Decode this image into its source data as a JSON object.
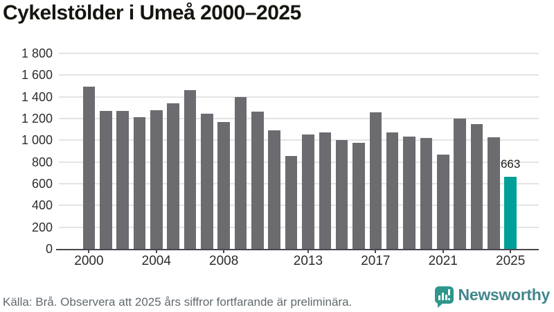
{
  "title": "Cykelstölder i Umeå 2000–2025",
  "chart_data": {
    "type": "bar",
    "categories": [
      2000,
      2001,
      2002,
      2003,
      2004,
      2005,
      2006,
      2007,
      2008,
      2009,
      2010,
      2011,
      2012,
      2013,
      2014,
      2015,
      2016,
      2017,
      2018,
      2019,
      2020,
      2021,
      2022,
      2023,
      2024,
      2025
    ],
    "values": [
      1495,
      1270,
      1270,
      1210,
      1275,
      1340,
      1465,
      1245,
      1170,
      1400,
      1265,
      1090,
      855,
      1055,
      1070,
      1005,
      975,
      1255,
      1070,
      1035,
      1020,
      870,
      1200,
      1150,
      1030,
      663
    ],
    "title": "Cykelstölder i Umeå 2000–2025",
    "xlabel": "",
    "ylabel": "",
    "ylim": [
      0,
      1800
    ],
    "grid": true,
    "legend": "none",
    "y_tick_labels": [
      "0",
      "200",
      "400",
      "600",
      "800",
      "1 000",
      "1 200",
      "1 400",
      "1 600",
      "1 800"
    ],
    "x_tick_years": [
      2000,
      2004,
      2008,
      2013,
      2017,
      2021,
      2025
    ],
    "highlight_year": 2025,
    "annotation": {
      "year": 2025,
      "label": "663"
    },
    "colors": {
      "bar": "#6b6b70",
      "highlight": "#00a099",
      "grid": "#e4e4e4",
      "axis": "#47474d"
    }
  },
  "footer": {
    "source": "Källa: Brå. Observera att 2025 års siffror fortfarande är preliminära."
  },
  "brand": {
    "name": "Newsworthy"
  }
}
